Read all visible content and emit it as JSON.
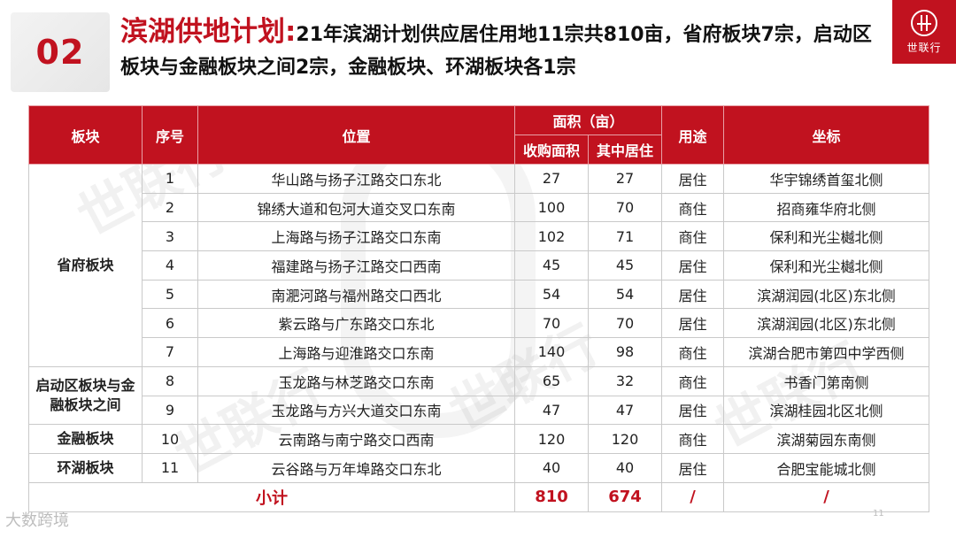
{
  "header": {
    "section_number": "02",
    "title_main": "滨湖供地计划:",
    "title_sub": "21年滨湖计划供应居住用地11宗共810亩，省府板块7宗，启动区板块与金融板块之间2宗，金融板块、环湖板块各1宗"
  },
  "logo": {
    "text": "世联行"
  },
  "table": {
    "headers": {
      "block": "板块",
      "seq": "序号",
      "location": "位置",
      "area_group": "面积（亩）",
      "area_purchase": "收购面积",
      "area_residential": "其中居住",
      "use": "用途",
      "landmark": "坐标"
    },
    "groups": [
      {
        "block": "省府板块",
        "rows": [
          {
            "seq": "1",
            "location": "华山路与扬子江路交口东北",
            "purchase": "27",
            "residential": "27",
            "use": "居住",
            "landmark": "华宇锦绣首玺北侧"
          },
          {
            "seq": "2",
            "location": "锦绣大道和包河大道交叉口东南",
            "purchase": "100",
            "residential": "70",
            "use": "商住",
            "landmark": "招商雍华府北侧"
          },
          {
            "seq": "3",
            "location": "上海路与扬子江路交口东南",
            "purchase": "102",
            "residential": "71",
            "use": "商住",
            "landmark": "保利和光尘樾北侧"
          },
          {
            "seq": "4",
            "location": "福建路与扬子江路交口西南",
            "purchase": "45",
            "residential": "45",
            "use": "居住",
            "landmark": "保利和光尘樾北侧"
          },
          {
            "seq": "5",
            "location": "南淝河路与福州路交口西北",
            "purchase": "54",
            "residential": "54",
            "use": "居住",
            "landmark": "滨湖润园(北区)东北侧"
          },
          {
            "seq": "6",
            "location": "紫云路与广东路交口东北",
            "purchase": "70",
            "residential": "70",
            "use": "居住",
            "landmark": "滨湖润园(北区)东北侧"
          },
          {
            "seq": "7",
            "location": "上海路与迎淮路交口东南",
            "purchase": "140",
            "residential": "98",
            "use": "商住",
            "landmark": "滨湖合肥市第四中学西侧"
          }
        ]
      },
      {
        "block": "启动区板块与金融板块之间",
        "rows": [
          {
            "seq": "8",
            "location": "玉龙路与林芝路交口东南",
            "purchase": "65",
            "residential": "32",
            "use": "商住",
            "landmark": "书香门第南侧"
          },
          {
            "seq": "9",
            "location": "玉龙路与方兴大道交口东南",
            "purchase": "47",
            "residential": "47",
            "use": "居住",
            "landmark": "滨湖桂园北区北侧"
          }
        ]
      },
      {
        "block": "金融板块",
        "rows": [
          {
            "seq": "10",
            "location": "云南路与南宁路交口西南",
            "purchase": "120",
            "residential": "120",
            "use": "商住",
            "landmark": "滨湖菊园东南侧"
          }
        ]
      },
      {
        "block": "环湖板块",
        "rows": [
          {
            "seq": "11",
            "location": "云谷路与万年埠路交口东北",
            "purchase": "40",
            "residential": "40",
            "use": "居住",
            "landmark": "合肥宝能城北侧"
          }
        ]
      }
    ],
    "total": {
      "label": "小计",
      "purchase": "810",
      "residential": "674",
      "use": "/",
      "landmark": "/"
    }
  },
  "watermark": {
    "text": "世联行"
  },
  "footer": {
    "source": "大数跨境",
    "page_number": "11"
  }
}
